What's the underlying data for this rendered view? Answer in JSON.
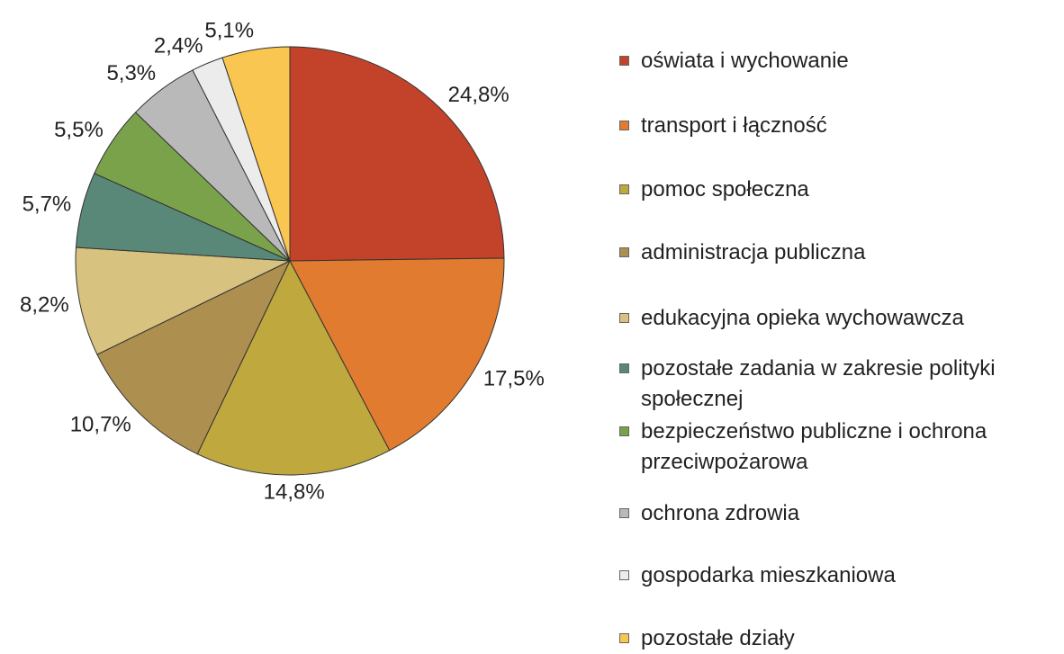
{
  "chart_data": {
    "type": "pie",
    "categories": [
      "oświata i wychowanie",
      "transport i łączność",
      "pomoc społeczna",
      "administracja publiczna",
      "edukacyjna opieka wychowawcza",
      "pozostałe zadania w zakresie polityki społecznej",
      "bezpieczeństwo publiczne i ochrona przeciwpożarowa",
      "ochrona zdrowia",
      "gospodarka mieszkaniowa",
      "pozostałe działy"
    ],
    "values": [
      24.8,
      17.5,
      14.8,
      10.7,
      8.2,
      5.7,
      5.5,
      5.3,
      2.4,
      5.1
    ],
    "value_labels": [
      "24,8%",
      "17,5%",
      "14,8%",
      "10,7%",
      "8,2%",
      "5,7%",
      "5,5%",
      "5,3%",
      "2,4%",
      "5,1%"
    ],
    "colors": [
      "#c3432a",
      "#e07b30",
      "#bfa93e",
      "#ad8f4f",
      "#d7c27f",
      "#5a8878",
      "#7aa24a",
      "#b9b9b9",
      "#ececec",
      "#f8c651"
    ],
    "legend": "right"
  }
}
